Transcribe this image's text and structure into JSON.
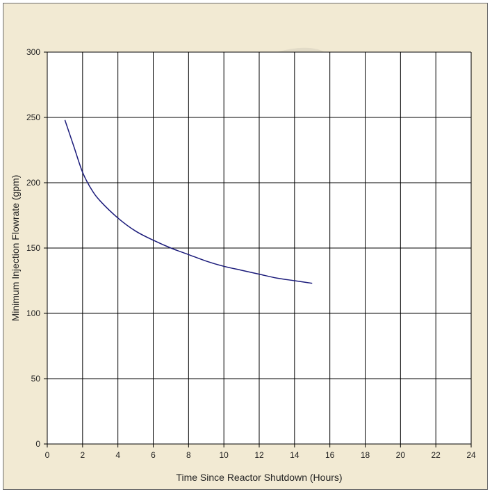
{
  "chart_data": {
    "type": "line",
    "title": "",
    "xlabel": "Time Since Reactor Shutdown (Hours)",
    "ylabel": "Minimum Injection Flowrate (gpm)",
    "xlim": [
      0,
      24
    ],
    "ylim": [
      0,
      300
    ],
    "xticks": [
      0,
      2,
      4,
      6,
      8,
      10,
      12,
      14,
      16,
      18,
      20,
      22,
      24
    ],
    "yticks": [
      0,
      50,
      100,
      150,
      200,
      250,
      300
    ],
    "grid": true,
    "series": [
      {
        "color": "#1a1a7a",
        "x": [
          1,
          1.5,
          2,
          2.5,
          3,
          4,
          5,
          6,
          7,
          8,
          9,
          10,
          11,
          12,
          13,
          14,
          15
        ],
        "y": [
          248,
          228,
          208,
          195,
          186,
          173,
          163,
          156,
          150,
          145,
          140,
          136,
          133,
          130,
          127,
          125,
          123
        ]
      }
    ]
  }
}
